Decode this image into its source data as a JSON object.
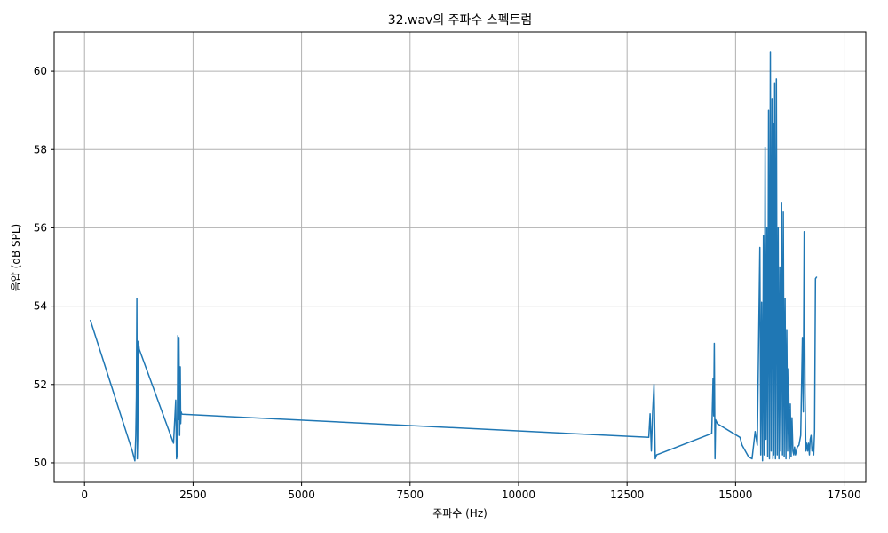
{
  "chart_data": {
    "type": "line",
    "title": "32.wav의 주파수 스펙트럼",
    "xlabel": "주파수 (Hz)",
    "ylabel": "음압 (dB SPL)",
    "xlim": [
      -700,
      18000
    ],
    "ylim": [
      49.5,
      61
    ],
    "xticks": [
      0,
      2500,
      5000,
      7500,
      10000,
      12500,
      15000,
      17500
    ],
    "yticks": [
      50,
      52,
      54,
      56,
      58,
      60
    ],
    "grid": true,
    "line_color": "#1f77b4",
    "series": [
      {
        "x": [
          130,
          1100,
          1160,
          1180,
          1195,
          1205,
          1215,
          1225,
          1240,
          1260,
          2050,
          2100,
          2120,
          2135,
          2150,
          2160,
          2175,
          2190,
          2205,
          2215,
          2225,
          2240,
          2260,
          13000,
          13030,
          13060,
          13090,
          13120,
          13150,
          13180,
          14450,
          14480,
          14495,
          14510,
          14525,
          14540,
          14560,
          14580,
          15100,
          15150,
          15300,
          15380,
          15450,
          15500,
          15560,
          15580,
          15600,
          15620,
          15640,
          15660,
          15680,
          15700,
          15720,
          15740,
          15760,
          15780,
          15800,
          15820,
          15840,
          15860,
          15870,
          15880,
          15900,
          15920,
          15940,
          15960,
          15980,
          16000,
          16020,
          16040,
          16060,
          16080,
          16100,
          16120,
          16140,
          16160,
          16180,
          16200,
          16220,
          16240,
          16260,
          16280,
          16300,
          16320,
          16340,
          16360,
          16380,
          16420,
          16460,
          16500,
          16540,
          16560,
          16580,
          16600,
          16620,
          16640,
          16660,
          16680,
          16700,
          16720,
          16740,
          16760,
          16780,
          16800,
          16820,
          16840,
          16870
        ],
        "y": [
          53.65,
          50.3,
          50.05,
          50.7,
          51.7,
          54.2,
          50.1,
          50.6,
          53.1,
          52.9,
          50.5,
          51.6,
          50.1,
          50.2,
          53.25,
          51.1,
          53.2,
          50.7,
          52.45,
          51.0,
          51.3,
          51.25,
          51.24,
          50.65,
          51.25,
          50.3,
          51.3,
          52.0,
          50.1,
          50.2,
          50.75,
          52.15,
          51.2,
          53.05,
          50.1,
          51.1,
          51.05,
          51.0,
          50.65,
          50.45,
          50.15,
          50.1,
          50.8,
          50.45,
          55.5,
          50.2,
          54.1,
          50.05,
          55.8,
          50.2,
          58.05,
          50.6,
          56.0,
          50.15,
          59.0,
          50.1,
          60.5,
          50.3,
          59.3,
          50.1,
          58.65,
          50.2,
          59.7,
          50.1,
          59.8,
          50.2,
          56.0,
          50.1,
          55.0,
          50.3,
          56.65,
          50.2,
          56.4,
          50.15,
          54.2,
          50.1,
          53.4,
          50.3,
          52.4,
          50.1,
          51.5,
          50.15,
          51.15,
          50.3,
          50.2,
          50.4,
          50.2,
          50.4,
          50.45,
          50.7,
          53.2,
          51.3,
          55.9,
          51.8,
          50.3,
          50.5,
          50.3,
          50.5,
          50.2,
          50.6,
          50.7,
          50.3,
          50.4,
          50.2,
          50.8,
          54.7,
          54.75
        ]
      }
    ]
  }
}
